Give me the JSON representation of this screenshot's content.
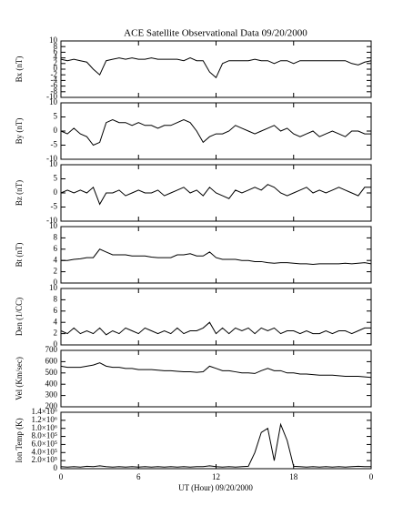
{
  "chart_data": [
    {
      "type": "line",
      "title": "ACE Satellite Observational Data  09/20/2000",
      "y_label": "Bx (nT)",
      "color": "#000000",
      "x": [
        0,
        0.5,
        1,
        1.5,
        2,
        2.5,
        3,
        3.5,
        4,
        4.5,
        5,
        5.5,
        6,
        6.5,
        7,
        7.5,
        8,
        8.5,
        9,
        9.5,
        10,
        10.5,
        11,
        11.5,
        12,
        12.5,
        13,
        13.5,
        14,
        14.5,
        15,
        15.5,
        16,
        16.5,
        17,
        17.5,
        18,
        18.5,
        19,
        19.5,
        20,
        20.5,
        21,
        21.5,
        22,
        22.5,
        23,
        23.5,
        24
      ],
      "values": [
        3.5,
        3,
        3.5,
        3,
        2.5,
        0,
        -2,
        3,
        3.5,
        4,
        3.5,
        4,
        3.5,
        3.5,
        4,
        3.5,
        3.5,
        3.5,
        3.5,
        3,
        4,
        3,
        3,
        -1,
        -3,
        2,
        3,
        3,
        3,
        3,
        3.5,
        3,
        3,
        2,
        3,
        3,
        2,
        3,
        3,
        3,
        3,
        3,
        3,
        3,
        3,
        2,
        1.5,
        2.5,
        3
      ],
      "xlim": [
        0,
        24
      ],
      "xticks": [
        0,
        6,
        12,
        18,
        24
      ],
      "ylim": [
        -10,
        10
      ],
      "yticks": [
        -10,
        -8,
        -6,
        -4,
        -2,
        0,
        2,
        4,
        6,
        8,
        10
      ]
    },
    {
      "type": "line",
      "y_label": "By (nT)",
      "color": "#000000",
      "x": [
        0,
        0.5,
        1,
        1.5,
        2,
        2.5,
        3,
        3.5,
        4,
        4.5,
        5,
        5.5,
        6,
        6.5,
        7,
        7.5,
        8,
        8.5,
        9,
        9.5,
        10,
        10.5,
        11,
        11.5,
        12,
        12.5,
        13,
        13.5,
        14,
        14.5,
        15,
        15.5,
        16,
        16.5,
        17,
        17.5,
        18,
        18.5,
        19,
        19.5,
        20,
        20.5,
        21,
        21.5,
        22,
        22.5,
        23,
        23.5,
        24
      ],
      "values": [
        0,
        -1,
        1,
        -1,
        -2,
        -5,
        -4,
        3,
        4,
        3,
        3,
        2,
        3,
        2,
        2,
        1,
        2,
        2,
        3,
        4,
        3,
        0,
        -4,
        -2,
        -1,
        -1,
        0,
        2,
        1,
        0,
        -1,
        0,
        1,
        2,
        0,
        1,
        -1,
        -2,
        -1,
        0,
        -2,
        -1,
        0,
        -1,
        -2,
        0,
        0,
        -1,
        -1
      ],
      "xlim": [
        0,
        24
      ],
      "xticks": [
        0,
        6,
        12,
        18,
        24
      ],
      "ylim": [
        -10,
        10
      ],
      "yticks": [
        -10,
        -5,
        0,
        5,
        10
      ]
    },
    {
      "type": "line",
      "y_label": "Bz (nT)",
      "color": "#000000",
      "x": [
        0,
        0.5,
        1,
        1.5,
        2,
        2.5,
        3,
        3.5,
        4,
        4.5,
        5,
        5.5,
        6,
        6.5,
        7,
        7.5,
        8,
        8.5,
        9,
        9.5,
        10,
        10.5,
        11,
        11.5,
        12,
        12.5,
        13,
        13.5,
        14,
        14.5,
        15,
        15.5,
        16,
        16.5,
        17,
        17.5,
        18,
        18.5,
        19,
        19.5,
        20,
        20.5,
        21,
        21.5,
        22,
        22.5,
        23,
        23.5,
        24
      ],
      "values": [
        0,
        1,
        0,
        1,
        0,
        2,
        -4,
        0,
        0,
        1,
        -1,
        0,
        1,
        0,
        0,
        1,
        -1,
        0,
        1,
        2,
        0,
        1,
        -1,
        2,
        0,
        -1,
        -2,
        1,
        0,
        1,
        2,
        1,
        3,
        2,
        0,
        -1,
        0,
        1,
        2,
        0,
        1,
        0,
        1,
        2,
        1,
        0,
        -1,
        2,
        2
      ],
      "xlim": [
        0,
        24
      ],
      "xticks": [
        0,
        6,
        12,
        18,
        24
      ],
      "ylim": [
        -10,
        10
      ],
      "yticks": [
        -10,
        -5,
        0,
        5,
        10
      ]
    },
    {
      "type": "line",
      "y_label": "Bt (nT)",
      "color": "#000000",
      "x": [
        0,
        0.5,
        1,
        1.5,
        2,
        2.5,
        3,
        3.5,
        4,
        4.5,
        5,
        5.5,
        6,
        6.5,
        7,
        7.5,
        8,
        8.5,
        9,
        9.5,
        10,
        10.5,
        11,
        11.5,
        12,
        12.5,
        13,
        13.5,
        14,
        14.5,
        15,
        15.5,
        16,
        16.5,
        17,
        17.5,
        18,
        18.5,
        19,
        19.5,
        20,
        20.5,
        21,
        21.5,
        22,
        22.5,
        23,
        23.5,
        24
      ],
      "values": [
        4,
        4,
        4.2,
        4.3,
        4.5,
        4.5,
        6,
        5.5,
        5,
        5,
        5,
        4.8,
        4.8,
        4.8,
        4.6,
        4.5,
        4.5,
        4.5,
        5,
        5,
        5.2,
        4.8,
        4.8,
        5.5,
        4.5,
        4.2,
        4.2,
        4.2,
        4,
        4,
        3.8,
        3.8,
        3.6,
        3.5,
        3.6,
        3.6,
        3.5,
        3.4,
        3.4,
        3.3,
        3.4,
        3.4,
        3.4,
        3.4,
        3.5,
        3.4,
        3.5,
        3.6,
        3.4
      ],
      "xlim": [
        0,
        24
      ],
      "xticks": [
        0,
        6,
        12,
        18,
        24
      ],
      "ylim": [
        0,
        10
      ],
      "yticks": [
        0,
        2,
        4,
        6,
        8,
        10
      ]
    },
    {
      "type": "line",
      "y_label": "Den (1/CC)",
      "color": "#000000",
      "x": [
        0,
        0.5,
        1,
        1.5,
        2,
        2.5,
        3,
        3.5,
        4,
        4.5,
        5,
        5.5,
        6,
        6.5,
        7,
        7.5,
        8,
        8.5,
        9,
        9.5,
        10,
        10.5,
        11,
        11.5,
        12,
        12.5,
        13,
        13.5,
        14,
        14.5,
        15,
        15.5,
        16,
        16.5,
        17,
        17.5,
        18,
        18.5,
        19,
        19.5,
        20,
        20.5,
        21,
        21.5,
        22,
        22.5,
        23,
        23.5,
        24
      ],
      "values": [
        2.5,
        2,
        3,
        2,
        2.5,
        2,
        3,
        1.8,
        2.5,
        2,
        3,
        2.5,
        2,
        3,
        2.5,
        2,
        2.5,
        2,
        3,
        2,
        2.5,
        2.5,
        3,
        4,
        2,
        3,
        2,
        3,
        2.5,
        3,
        2,
        3,
        2.5,
        3,
        2,
        2.5,
        2.5,
        2,
        2.5,
        2,
        2,
        2.5,
        2,
        2.5,
        2.5,
        2,
        2.5,
        3,
        3
      ],
      "xlim": [
        0,
        24
      ],
      "xticks": [
        0,
        6,
        12,
        18,
        24
      ],
      "ylim": [
        0,
        10
      ],
      "yticks": [
        0,
        2,
        4,
        6,
        8,
        10
      ]
    },
    {
      "type": "line",
      "y_label": "Vel (Km/sec)",
      "color": "#000000",
      "x": [
        0,
        0.5,
        1,
        1.5,
        2,
        2.5,
        3,
        3.5,
        4,
        4.5,
        5,
        5.5,
        6,
        6.5,
        7,
        7.5,
        8,
        8.5,
        9,
        9.5,
        10,
        10.5,
        11,
        11.5,
        12,
        12.5,
        13,
        13.5,
        14,
        14.5,
        15,
        15.5,
        16,
        16.5,
        17,
        17.5,
        18,
        18.5,
        19,
        19.5,
        20,
        20.5,
        21,
        21.5,
        22,
        22.5,
        23,
        23.5,
        24
      ],
      "values": [
        560,
        550,
        550,
        550,
        560,
        570,
        590,
        560,
        550,
        550,
        540,
        540,
        530,
        530,
        530,
        525,
        520,
        520,
        515,
        510,
        510,
        505,
        510,
        560,
        540,
        520,
        520,
        510,
        500,
        500,
        495,
        520,
        540,
        520,
        520,
        500,
        500,
        490,
        490,
        485,
        480,
        480,
        480,
        475,
        470,
        470,
        470,
        465,
        460
      ],
      "xlim": [
        0,
        24
      ],
      "xticks": [
        0,
        6,
        12,
        18,
        24
      ],
      "ylim": [
        200,
        700
      ],
      "yticks": [
        200,
        300,
        400,
        500,
        600,
        700
      ]
    },
    {
      "type": "line",
      "y_label": "Ion Temp (K)",
      "x_label": "UT (Hour)  09/20/2000",
      "color": "#000000",
      "x": [
        0,
        0.5,
        1,
        1.5,
        2,
        2.5,
        3,
        3.5,
        4,
        4.5,
        5,
        5.5,
        6,
        6.5,
        7,
        7.5,
        8,
        8.5,
        9,
        9.5,
        10,
        10.5,
        11,
        11.5,
        12,
        12.5,
        13,
        13.5,
        14,
        14.5,
        15,
        15.5,
        16,
        16.5,
        17,
        17.5,
        18,
        18.5,
        19,
        19.5,
        20,
        20.5,
        21,
        21.5,
        22,
        22.5,
        23,
        23.5,
        24
      ],
      "values": [
        50000,
        40000,
        50000,
        40000,
        60000,
        50000,
        70000,
        50000,
        40000,
        50000,
        40000,
        50000,
        40000,
        50000,
        40000,
        50000,
        40000,
        50000,
        40000,
        50000,
        40000,
        50000,
        50000,
        70000,
        50000,
        40000,
        50000,
        40000,
        50000,
        60000,
        400000,
        900000,
        1000000,
        200000,
        1100000,
        700000,
        60000,
        50000,
        40000,
        50000,
        40000,
        50000,
        40000,
        50000,
        40000,
        50000,
        60000,
        50000,
        50000
      ],
      "xlim": [
        0,
        24
      ],
      "xticks": [
        0,
        6,
        12,
        18,
        {
          "value": 24,
          "label": "0"
        }
      ],
      "ylim": [
        0,
        1400000
      ],
      "yticks": [
        0,
        {
          "value": 200000,
          "label": "2.0×10⁵"
        },
        {
          "value": 400000,
          "label": "4.0×10⁵"
        },
        {
          "value": 600000,
          "label": "6.0×10⁵"
        },
        {
          "value": 800000,
          "label": "8.0×10⁵"
        },
        {
          "value": 1000000,
          "label": "1.0×10⁶"
        },
        {
          "value": 1200000,
          "label": "1.2×10⁶"
        },
        {
          "value": 1400000,
          "label": "1.4×10⁶"
        }
      ]
    }
  ]
}
